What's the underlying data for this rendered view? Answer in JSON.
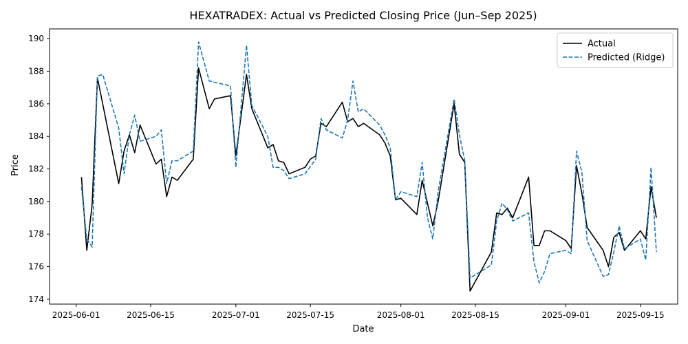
{
  "chart_data": {
    "type": "line",
    "title": "HEXATRADEX: Actual vs Predicted Closing Price (Jun–Sep 2025)",
    "xlabel": "Date",
    "ylabel": "Price",
    "x_ticks": [
      "2025-06-01",
      "2025-06-15",
      "2025-07-01",
      "2025-07-15",
      "2025-08-01",
      "2025-08-15",
      "2025-09-01",
      "2025-09-15"
    ],
    "y_ticks": [
      174,
      176,
      178,
      180,
      182,
      184,
      186,
      188,
      190
    ],
    "xlim": [
      "2025-05-27",
      "2025-09-22"
    ],
    "ylim": [
      173.7,
      190.6
    ],
    "grid": false,
    "legend_position": "upper right",
    "series": [
      {
        "name": "Actual",
        "color": "#000000",
        "style": "solid",
        "points": [
          [
            "2025-06-02",
            181.5
          ],
          [
            "2025-06-03",
            177.0
          ],
          [
            "2025-06-04",
            179.8
          ],
          [
            "2025-06-05",
            187.6
          ],
          [
            "2025-06-09",
            181.1
          ],
          [
            "2025-06-10",
            183.1
          ],
          [
            "2025-06-11",
            184.1
          ],
          [
            "2025-06-12",
            183.0
          ],
          [
            "2025-06-13",
            184.7
          ],
          [
            "2025-06-16",
            182.3
          ],
          [
            "2025-06-17",
            182.6
          ],
          [
            "2025-06-18",
            180.3
          ],
          [
            "2025-06-19",
            181.5
          ],
          [
            "2025-06-20",
            181.3
          ],
          [
            "2025-06-23",
            182.6
          ],
          [
            "2025-06-24",
            188.2
          ],
          [
            "2025-06-26",
            185.7
          ],
          [
            "2025-06-27",
            186.3
          ],
          [
            "2025-06-30",
            186.5
          ],
          [
            "2025-07-01",
            182.8
          ],
          [
            "2025-07-03",
            187.8
          ],
          [
            "2025-07-04",
            185.7
          ],
          [
            "2025-07-07",
            183.3
          ],
          [
            "2025-07-08",
            183.5
          ],
          [
            "2025-07-09",
            182.5
          ],
          [
            "2025-07-10",
            182.4
          ],
          [
            "2025-07-11",
            181.7
          ],
          [
            "2025-07-14",
            182.1
          ],
          [
            "2025-07-15",
            182.6
          ],
          [
            "2025-07-16",
            182.8
          ],
          [
            "2025-07-17",
            184.8
          ],
          [
            "2025-07-18",
            184.6
          ],
          [
            "2025-07-21",
            186.1
          ],
          [
            "2025-07-22",
            184.9
          ],
          [
            "2025-07-23",
            185.1
          ],
          [
            "2025-07-24",
            184.6
          ],
          [
            "2025-07-25",
            184.8
          ],
          [
            "2025-07-28",
            184.1
          ],
          [
            "2025-07-29",
            183.6
          ],
          [
            "2025-07-30",
            182.8
          ],
          [
            "2025-07-31",
            180.1
          ],
          [
            "2025-08-01",
            180.2
          ],
          [
            "2025-08-04",
            179.2
          ],
          [
            "2025-08-05",
            181.3
          ],
          [
            "2025-08-07",
            178.5
          ],
          [
            "2025-08-08",
            180.0
          ],
          [
            "2025-08-11",
            186.0
          ],
          [
            "2025-08-12",
            182.9
          ],
          [
            "2025-08-13",
            182.4
          ],
          [
            "2025-08-14",
            174.5
          ],
          [
            "2025-08-18",
            176.9
          ],
          [
            "2025-08-19",
            179.3
          ],
          [
            "2025-08-20",
            179.2
          ],
          [
            "2025-08-21",
            179.6
          ],
          [
            "2025-08-22",
            179.0
          ],
          [
            "2025-08-25",
            181.5
          ],
          [
            "2025-08-26",
            177.3
          ],
          [
            "2025-08-27",
            177.3
          ],
          [
            "2025-08-28",
            178.2
          ],
          [
            "2025-08-29",
            178.2
          ],
          [
            "2025-09-01",
            177.6
          ],
          [
            "2025-09-02",
            177.1
          ],
          [
            "2025-09-03",
            182.2
          ],
          [
            "2025-09-04",
            180.5
          ],
          [
            "2025-09-05",
            178.4
          ],
          [
            "2025-09-08",
            177.0
          ],
          [
            "2025-09-09",
            176.0
          ],
          [
            "2025-09-10",
            177.8
          ],
          [
            "2025-09-11",
            178.1
          ],
          [
            "2025-09-12",
            177.0
          ],
          [
            "2025-09-15",
            178.2
          ],
          [
            "2025-09-16",
            177.7
          ],
          [
            "2025-09-17",
            180.9
          ],
          [
            "2025-09-18",
            179.0
          ]
        ]
      },
      {
        "name": "Predicted (Ridge)",
        "color": "#1f77b4",
        "style": "dashed",
        "points": [
          [
            "2025-06-02",
            180.9
          ],
          [
            "2025-06-03",
            177.7
          ],
          [
            "2025-06-04",
            177.2
          ],
          [
            "2025-06-05",
            187.7
          ],
          [
            "2025-06-06",
            187.8
          ],
          [
            "2025-06-09",
            184.5
          ],
          [
            "2025-06-10",
            181.7
          ],
          [
            "2025-06-11",
            184.1
          ],
          [
            "2025-06-12",
            185.3
          ],
          [
            "2025-06-13",
            183.7
          ],
          [
            "2025-06-16",
            184.0
          ],
          [
            "2025-06-17",
            184.4
          ],
          [
            "2025-06-18",
            181.1
          ],
          [
            "2025-06-19",
            182.5
          ],
          [
            "2025-06-20",
            182.5
          ],
          [
            "2025-06-23",
            183.1
          ],
          [
            "2025-06-24",
            189.8
          ],
          [
            "2025-06-26",
            187.4
          ],
          [
            "2025-06-30",
            187.1
          ],
          [
            "2025-07-01",
            182.1
          ],
          [
            "2025-07-03",
            189.6
          ],
          [
            "2025-07-04",
            185.9
          ],
          [
            "2025-07-07",
            184.0
          ],
          [
            "2025-07-08",
            182.1
          ],
          [
            "2025-07-09",
            182.1
          ],
          [
            "2025-07-10",
            181.9
          ],
          [
            "2025-07-11",
            181.4
          ],
          [
            "2025-07-14",
            181.7
          ],
          [
            "2025-07-16",
            182.6
          ],
          [
            "2025-07-17",
            185.1
          ],
          [
            "2025-07-18",
            184.4
          ],
          [
            "2025-07-21",
            183.9
          ],
          [
            "2025-07-22",
            185.0
          ],
          [
            "2025-07-23",
            187.4
          ],
          [
            "2025-07-24",
            185.5
          ],
          [
            "2025-07-25",
            185.7
          ],
          [
            "2025-07-28",
            184.7
          ],
          [
            "2025-07-29",
            184.1
          ],
          [
            "2025-07-30",
            183.3
          ],
          [
            "2025-07-31",
            180.1
          ],
          [
            "2025-08-01",
            180.6
          ],
          [
            "2025-08-04",
            180.3
          ],
          [
            "2025-08-05",
            182.4
          ],
          [
            "2025-08-06",
            179.0
          ],
          [
            "2025-08-07",
            177.7
          ],
          [
            "2025-08-08",
            180.6
          ],
          [
            "2025-08-11",
            186.3
          ],
          [
            "2025-08-12",
            184.1
          ],
          [
            "2025-08-13",
            182.5
          ],
          [
            "2025-08-14",
            175.3
          ],
          [
            "2025-08-18",
            176.1
          ],
          [
            "2025-08-19",
            178.8
          ],
          [
            "2025-08-20",
            179.9
          ],
          [
            "2025-08-21",
            179.5
          ],
          [
            "2025-08-22",
            178.8
          ],
          [
            "2025-08-25",
            179.3
          ],
          [
            "2025-08-26",
            176.3
          ],
          [
            "2025-08-27",
            175.0
          ],
          [
            "2025-08-28",
            175.7
          ],
          [
            "2025-08-29",
            176.8
          ],
          [
            "2025-09-01",
            177.0
          ],
          [
            "2025-09-02",
            176.8
          ],
          [
            "2025-09-03",
            183.1
          ],
          [
            "2025-09-04",
            181.8
          ],
          [
            "2025-09-05",
            177.6
          ],
          [
            "2025-09-08",
            175.4
          ],
          [
            "2025-09-09",
            175.5
          ],
          [
            "2025-09-10",
            176.9
          ],
          [
            "2025-09-11",
            178.5
          ],
          [
            "2025-09-12",
            177.1
          ],
          [
            "2025-09-15",
            177.7
          ],
          [
            "2025-09-16",
            176.4
          ],
          [
            "2025-09-17",
            182.1
          ],
          [
            "2025-09-18",
            176.9
          ]
        ]
      }
    ]
  }
}
